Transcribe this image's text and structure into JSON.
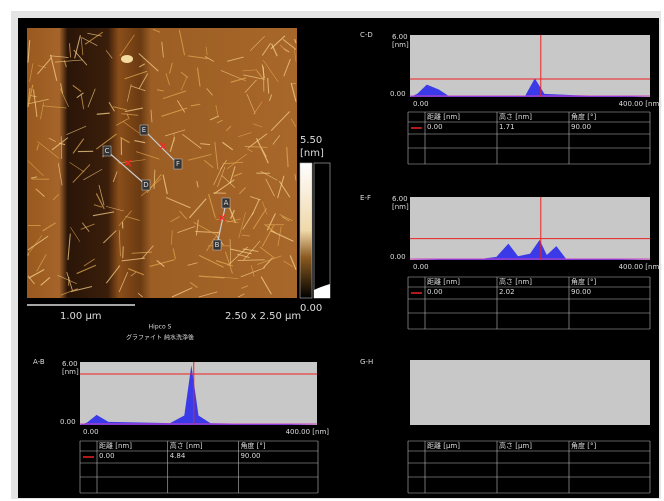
{
  "image": {
    "colorbar_max": "5.50",
    "colorbar_unit": "[nm]",
    "colorbar_min": "0.00",
    "scale_label": "1.00 µm",
    "size_label": "2.50 x 2.50 µm",
    "sample": "Hipco S",
    "caption": "グラファイト 純水洗浄後",
    "markers": [
      "A",
      "B",
      "C",
      "D",
      "E",
      "F"
    ]
  },
  "profiles": [
    {
      "name": "C-D",
      "y_max": "6.00",
      "y_unit": "[nm]",
      "y_min": "0.00",
      "x_min": "0.00",
      "x_max": "400.00 [nm]",
      "table": {
        "headers": [
          "距離 [nm]",
          "高さ [nm]",
          "角度 [°]"
        ],
        "rows": [
          [
            "0.00",
            "1.71",
            "90.00"
          ]
        ]
      }
    },
    {
      "name": "E-F",
      "y_max": "6.00",
      "y_unit": "[nm]",
      "y_min": "0.00",
      "x_min": "0.00",
      "x_max": "400.00 [nm]",
      "table": {
        "headers": [
          "距離 [nm]",
          "高さ [nm]",
          "角度 [°]"
        ],
        "rows": [
          [
            "0.00",
            "2.02",
            "90.00"
          ]
        ]
      }
    },
    {
      "name": "A-B",
      "y_max": "6.00",
      "y_unit": "[nm]",
      "y_min": "0.00",
      "x_min": "0.00",
      "x_max": "400.00 [nm]",
      "table": {
        "headers": [
          "距離 [nm]",
          "高さ [nm]",
          "角度 [°]"
        ],
        "rows": [
          [
            "0.00",
            "4.84",
            "90.00"
          ]
        ]
      }
    },
    {
      "name": "G-H",
      "table": {
        "headers": [
          "距離 [µm]",
          "高さ [µm]",
          "角度 [°]"
        ],
        "rows": []
      }
    }
  ]
}
